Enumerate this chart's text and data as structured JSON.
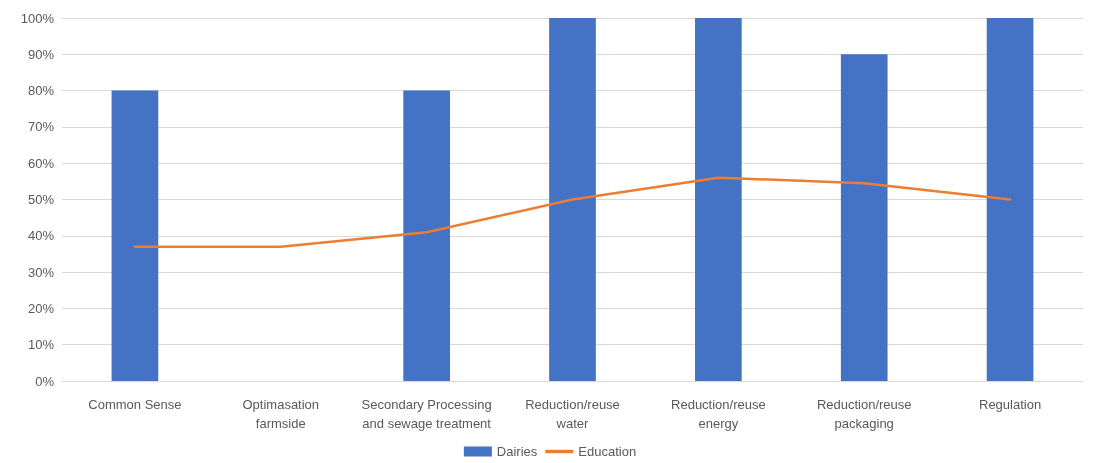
{
  "chart_data": {
    "type": "bar",
    "categories": [
      "Common Sense",
      "Optimasation farmside",
      "Secondary Processing and sewage treatment",
      "Reduction/reuse water",
      "Reduction/reuse energy",
      "Reduction/reuse packaging",
      "Regulation"
    ],
    "series": [
      {
        "name": "Dairies",
        "color": "#4472c4",
        "values": [
          80,
          null,
          80,
          100,
          100,
          90,
          100
        ]
      },
      {
        "name": "Education",
        "type": "line",
        "color": "#ed7d31",
        "values": [
          37,
          37,
          41,
          50,
          56,
          54.5,
          50
        ]
      }
    ],
    "ylim": [
      0,
      100
    ],
    "yticks": [
      {
        "value": 0,
        "label": "0%"
      },
      {
        "value": 10,
        "label": "10%"
      },
      {
        "value": 20,
        "label": "20%"
      },
      {
        "value": 30,
        "label": "30%"
      },
      {
        "value": 40,
        "label": "40%"
      },
      {
        "value": 50,
        "label": "50%"
      },
      {
        "value": 60,
        "label": "60%"
      },
      {
        "value": 70,
        "label": "70%"
      },
      {
        "value": 80,
        "label": "80%"
      },
      {
        "value": 90,
        "label": "90%"
      },
      {
        "value": 100,
        "label": "100%"
      }
    ],
    "grid": "y",
    "legend": "bottom",
    "marker": "none",
    "line_style": "solid"
  }
}
